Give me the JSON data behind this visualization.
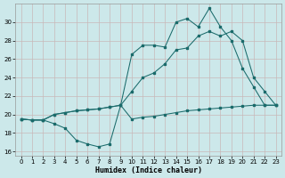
{
  "bg_color": "#cce8ea",
  "grid_color": "#c8b8b8",
  "line_color": "#1a6b6b",
  "xlabel": "Humidex (Indice chaleur)",
  "xlim": [
    -0.5,
    23.5
  ],
  "ylim": [
    15.5,
    32
  ],
  "yticks": [
    16,
    18,
    20,
    22,
    24,
    26,
    28,
    30
  ],
  "xticks": [
    0,
    1,
    2,
    3,
    4,
    5,
    6,
    7,
    8,
    9,
    10,
    11,
    12,
    13,
    14,
    15,
    16,
    17,
    18,
    19,
    20,
    21,
    22,
    23
  ],
  "s1_x": [
    0,
    1,
    2,
    3,
    4,
    5,
    6,
    7,
    8,
    9,
    10,
    11,
    12,
    13,
    14,
    15,
    16,
    17,
    18,
    19,
    20,
    21,
    22,
    23
  ],
  "s1_y": [
    19.5,
    19.4,
    19.4,
    19.0,
    18.5,
    17.2,
    16.8,
    16.5,
    16.8,
    21.0,
    19.5,
    19.7,
    19.8,
    20.0,
    20.2,
    20.4,
    20.5,
    20.6,
    20.7,
    20.8,
    20.9,
    21.0,
    21.0,
    21.0
  ],
  "s2_x": [
    0,
    1,
    2,
    3,
    4,
    5,
    6,
    7,
    8,
    9,
    10,
    11,
    12,
    13,
    14,
    15,
    16,
    17,
    18,
    19,
    20,
    21,
    22,
    23
  ],
  "s2_y": [
    19.5,
    19.4,
    19.4,
    20.0,
    20.2,
    20.4,
    20.5,
    20.6,
    20.8,
    21.0,
    22.5,
    24.0,
    24.5,
    25.5,
    27.0,
    27.2,
    28.5,
    29.0,
    28.5,
    29.0,
    28.0,
    24.0,
    22.5,
    21.0
  ],
  "s3_x": [
    0,
    1,
    2,
    3,
    4,
    5,
    6,
    7,
    8,
    9,
    10,
    11,
    12,
    13,
    14,
    15,
    16,
    17,
    18,
    19,
    20,
    21,
    22,
    23
  ],
  "s3_y": [
    19.5,
    19.4,
    19.4,
    20.0,
    20.2,
    20.4,
    20.5,
    20.6,
    20.8,
    21.0,
    26.5,
    27.5,
    27.5,
    27.3,
    30.0,
    30.4,
    29.5,
    31.5,
    29.5,
    28.0,
    25.0,
    23.0,
    21.0,
    21.0
  ]
}
